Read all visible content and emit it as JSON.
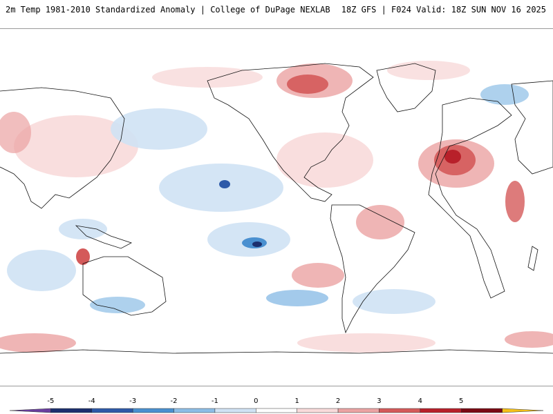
{
  "header": {
    "left_title": "2m Temp 1981-2010 Standardized Anomaly | College of DuPage NEXLAB",
    "right_title": "18Z GFS | F024 Valid: 18Z SUN NOV 16 2025"
  },
  "colorbar": {
    "labels": [
      "-5",
      "-4",
      "-3",
      "-2",
      "-1",
      "0",
      "1",
      "2",
      "3",
      "4",
      "5"
    ],
    "colors": [
      "#6a3fa0",
      "#1b2f6e",
      "#2e5aa8",
      "#4a90d0",
      "#8cbde6",
      "#cfe2f4",
      "#ffffff",
      "#f8dada",
      "#eba3a3",
      "#d45a5a",
      "#b8202a",
      "#7a0a14",
      "#f5c11a"
    ]
  }
}
